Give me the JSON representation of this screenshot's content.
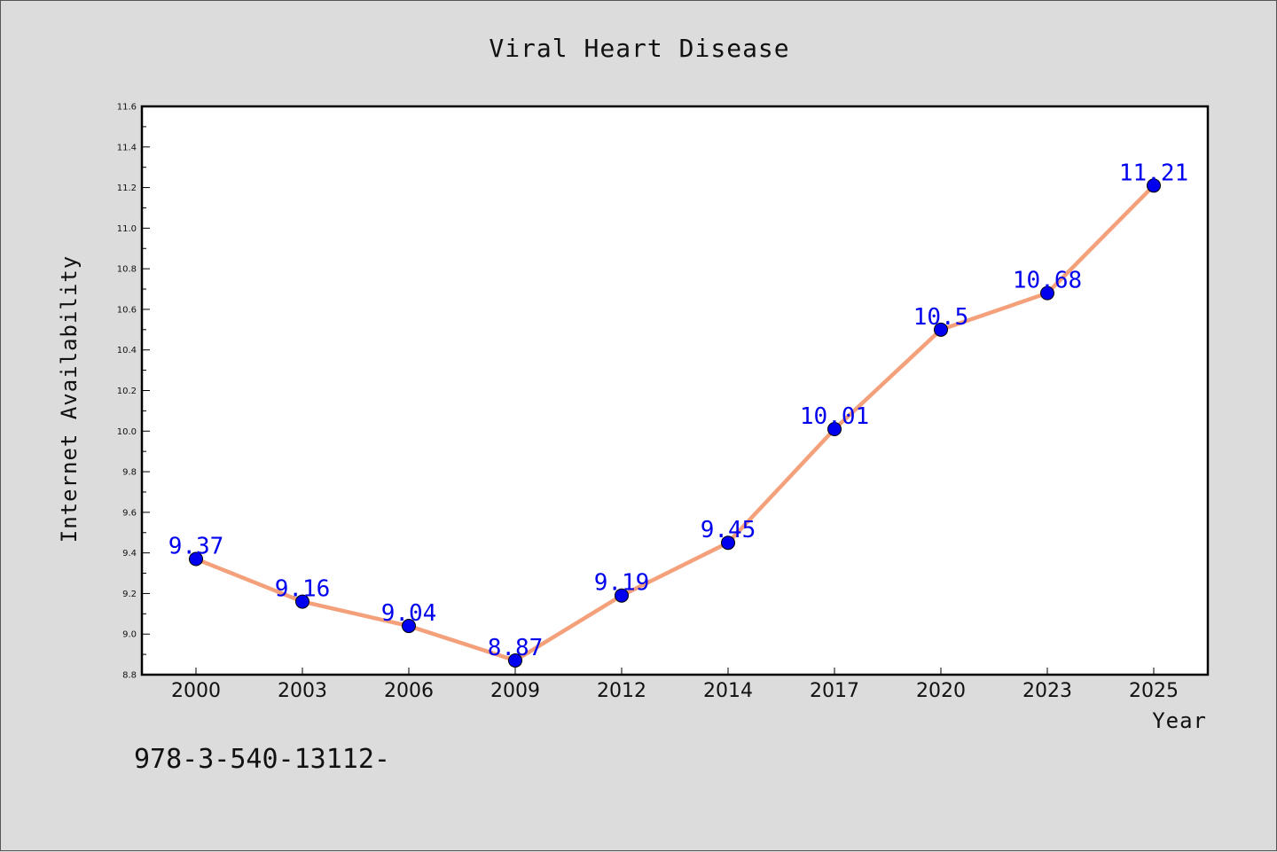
{
  "chart_data": {
    "type": "line",
    "title": "Viral Heart Disease",
    "xlabel": "Year",
    "ylabel": "Internet Availability",
    "categories": [
      "2000",
      "2003",
      "2006",
      "2009",
      "2012",
      "2014",
      "2017",
      "2020",
      "2023",
      "2025"
    ],
    "series": [
      {
        "values": [
          9.37,
          9.16,
          9.04,
          8.87,
          9.19,
          9.45,
          10.01,
          10.5,
          10.68,
          11.21
        ],
        "labels": [
          "9.37",
          "9.16",
          "9.04",
          "8.87",
          "9.19",
          "9.45",
          "10.01",
          "10.5",
          "10.68",
          "11.21"
        ],
        "line_color": "#f4a07a",
        "marker_color": "#0000ee",
        "label_color": "#0000ee"
      }
    ],
    "ylim": [
      8.8,
      11.6
    ],
    "yticks": [
      "8.8",
      "9.0",
      "9.2",
      "9.4",
      "9.6",
      "9.8",
      "10.0",
      "10.2",
      "10.4",
      "10.6",
      "10.8",
      "11.0",
      "11.2",
      "11.4",
      "11.6"
    ],
    "grid": false,
    "legend": "none"
  },
  "footer": {
    "text": "978-3-540-13112-"
  },
  "colors": {
    "background": "#dcdcdc",
    "plot_background": "#ffffff",
    "axis": "#000000"
  }
}
